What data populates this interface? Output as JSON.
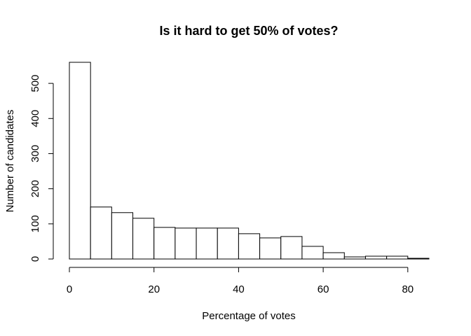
{
  "chart_data": {
    "type": "bar",
    "title": "Is it hard to get 50% of votes?",
    "xlabel": "Percentage of votes",
    "ylabel": "Number of candidates",
    "bin_edges": [
      0,
      5,
      10,
      15,
      20,
      25,
      30,
      35,
      40,
      45,
      50,
      55,
      60,
      65,
      70,
      75,
      80,
      85
    ],
    "values": [
      560,
      148,
      132,
      116,
      90,
      88,
      88,
      88,
      72,
      60,
      64,
      36,
      18,
      6,
      8,
      8,
      2
    ],
    "xlim": [
      0,
      85
    ],
    "ylim": [
      0,
      560
    ],
    "x_ticks": [
      "0",
      "20",
      "40",
      "60",
      "80"
    ],
    "y_ticks": [
      "0",
      "100",
      "200",
      "300",
      "400",
      "500"
    ],
    "grid": false,
    "legend": "none",
    "colors": {
      "bar_fill": "#ffffff",
      "bar_stroke": "#000000"
    }
  }
}
